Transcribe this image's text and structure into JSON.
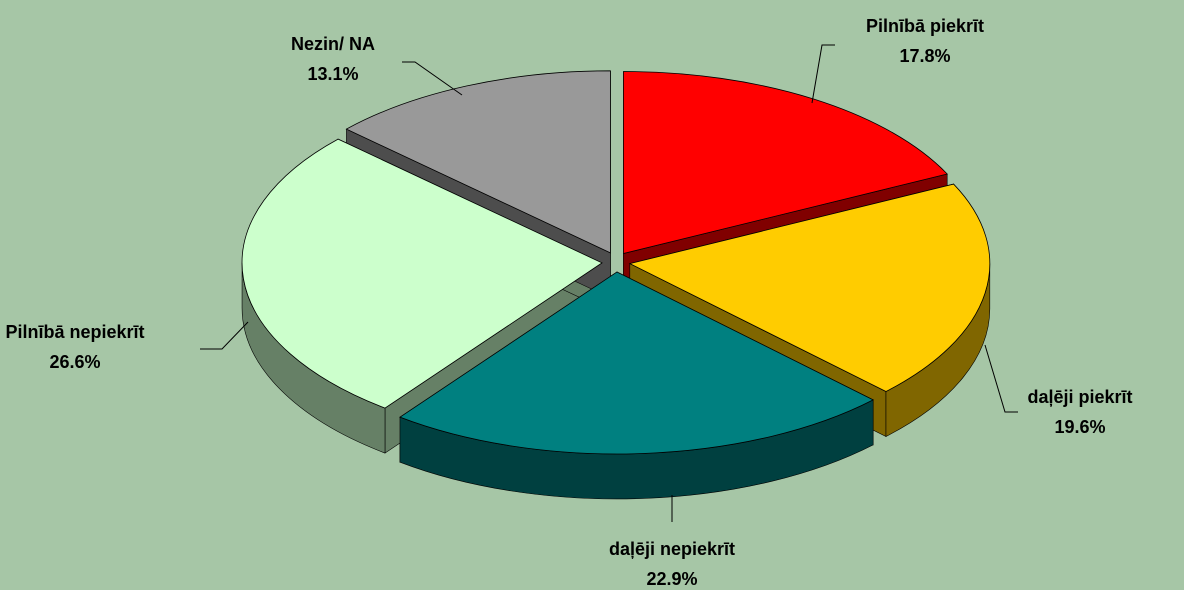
{
  "chart_data": {
    "type": "pie",
    "categories": [
      "Pilnībā piekrīt",
      "daļēji piekrīt",
      "daļēji nepiekrīt",
      "Pilnībā nepiekrīt",
      "Nezin/ NA"
    ],
    "values": [
      17.8,
      19.6,
      22.9,
      26.6,
      13.1
    ],
    "value_labels": [
      "17.8%",
      "19.6%",
      "22.9%",
      "26.6%",
      "13.1%"
    ],
    "colors": [
      "#ff0000",
      "#ffcc00",
      "#008080",
      "#ccffcc",
      "#999999"
    ]
  }
}
